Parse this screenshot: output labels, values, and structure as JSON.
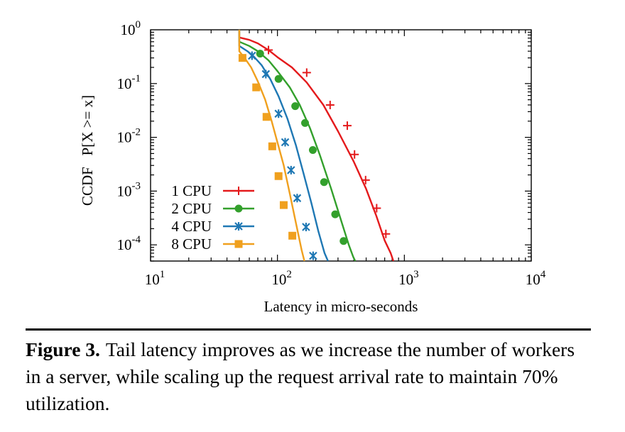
{
  "chart_data": {
    "type": "line",
    "title": "",
    "xlabel": "Latency in micro-seconds",
    "ylabel": "CCDF   P[X >= x]",
    "x_scale": "log",
    "y_scale": "log",
    "xlim": [
      10,
      10000
    ],
    "ylim": [
      5e-05,
      1
    ],
    "x_ticks": [
      {
        "value": 10,
        "base": "10",
        "exp": "1"
      },
      {
        "value": 100,
        "base": "10",
        "exp": "2"
      },
      {
        "value": 1000,
        "base": "10",
        "exp": "3"
      },
      {
        "value": 10000,
        "base": "10",
        "exp": "4"
      }
    ],
    "y_ticks": [
      {
        "value": 1,
        "base": "10",
        "exp": "0"
      },
      {
        "value": 0.1,
        "base": "10",
        "exp": "-1"
      },
      {
        "value": 0.01,
        "base": "10",
        "exp": "-2"
      },
      {
        "value": 0.001,
        "base": "10",
        "exp": "-3"
      },
      {
        "value": 0.0001,
        "base": "10",
        "exp": "-4"
      }
    ],
    "legend_position": "bottom-left",
    "series": [
      {
        "name": "1 CPU",
        "color": "#e41a1c",
        "marker": "plus",
        "curve": [
          [
            50,
            1.0
          ],
          [
            50,
            0.72
          ],
          [
            60,
            0.65
          ],
          [
            70,
            0.56
          ],
          [
            85,
            0.42
          ],
          [
            100,
            0.31
          ],
          [
            130,
            0.2
          ],
          [
            170,
            0.105
          ],
          [
            230,
            0.04
          ],
          [
            300,
            0.013
          ],
          [
            400,
            0.0035
          ],
          [
            500,
            0.0011
          ],
          [
            600,
            0.00035
          ],
          [
            700,
            0.00012
          ],
          [
            780,
            7e-05
          ],
          [
            820,
            5e-05
          ]
        ],
        "markers": [
          [
            85,
            0.42
          ],
          [
            170,
            0.16
          ],
          [
            260,
            0.04
          ],
          [
            355,
            0.0165
          ],
          [
            405,
            0.0048
          ],
          [
            495,
            0.0016
          ],
          [
            605,
            0.00048
          ],
          [
            715,
            0.00016
          ]
        ]
      },
      {
        "name": "2 CPU",
        "color": "#33a02c",
        "marker": "circle",
        "curve": [
          [
            50,
            1.0
          ],
          [
            50,
            0.6
          ],
          [
            60,
            0.5
          ],
          [
            70,
            0.4
          ],
          [
            85,
            0.27
          ],
          [
            100,
            0.17
          ],
          [
            125,
            0.085
          ],
          [
            150,
            0.04
          ],
          [
            180,
            0.015
          ],
          [
            215,
            0.0048
          ],
          [
            265,
            0.0011
          ],
          [
            315,
            0.0003
          ],
          [
            365,
            0.0001
          ],
          [
            395,
            6e-05
          ],
          [
            410,
            5e-05
          ]
        ],
        "markers": [
          [
            73,
            0.36
          ],
          [
            102,
            0.122
          ],
          [
            138,
            0.038
          ],
          [
            165,
            0.0185
          ],
          [
            190,
            0.0058
          ],
          [
            233,
            0.00147
          ],
          [
            285,
            0.00037
          ],
          [
            332,
            0.000118
          ]
        ]
      },
      {
        "name": "4 CPU",
        "color": "#1f78b4",
        "marker": "star",
        "curve": [
          [
            50,
            1.0
          ],
          [
            50,
            0.5
          ],
          [
            58,
            0.4
          ],
          [
            65,
            0.32
          ],
          [
            75,
            0.22
          ],
          [
            88,
            0.12
          ],
          [
            102,
            0.058
          ],
          [
            120,
            0.022
          ],
          [
            140,
            0.007
          ],
          [
            160,
            0.0022
          ],
          [
            185,
            0.0006
          ],
          [
            210,
            0.00018
          ],
          [
            235,
            7e-05
          ],
          [
            250,
            5e-05
          ]
        ],
        "markers": [
          [
            63,
            0.33
          ],
          [
            81,
            0.15
          ],
          [
            102,
            0.0275
          ],
          [
            115,
            0.0081
          ],
          [
            128,
            0.00245
          ],
          [
            143,
            0.00074
          ],
          [
            168,
            0.000215
          ],
          [
            191,
            6.25e-05
          ]
        ]
      },
      {
        "name": "8 CPU",
        "color": "#f0a01e",
        "marker": "square",
        "curve": [
          [
            50,
            1.0
          ],
          [
            50,
            0.4
          ],
          [
            55,
            0.3
          ],
          [
            62,
            0.2
          ],
          [
            70,
            0.11
          ],
          [
            80,
            0.05
          ],
          [
            90,
            0.02
          ],
          [
            100,
            0.008
          ],
          [
            112,
            0.003
          ],
          [
            125,
            0.0009
          ],
          [
            140,
            0.00025
          ],
          [
            155,
            8e-05
          ],
          [
            163,
            5e-05
          ]
        ],
        "markers": [
          [
            53,
            0.3
          ],
          [
            68,
            0.085
          ],
          [
            82,
            0.024
          ],
          [
            91,
            0.0068
          ],
          [
            102,
            0.0019
          ],
          [
            112,
            0.00055
          ],
          [
            131,
            0.000148
          ]
        ]
      }
    ]
  },
  "caption": {
    "label": "Figure 3.",
    "text": "Tail latency improves as we increase the number of workers in a server, while scaling up the request arrival rate to maintain 70% utilization."
  }
}
